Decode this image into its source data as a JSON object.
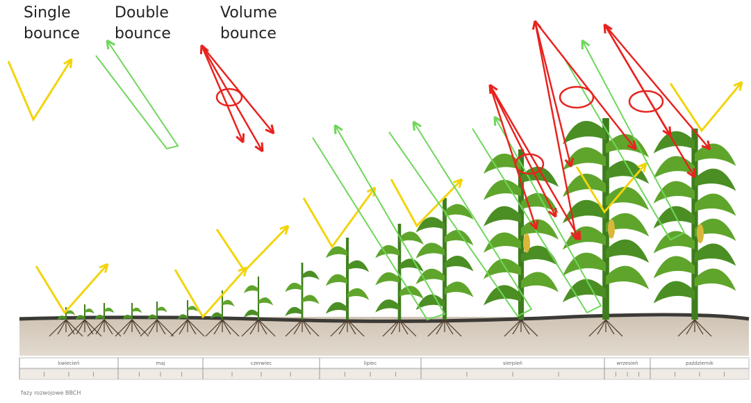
{
  "labels": [
    "Single bounce",
    "Double bounce",
    "Volume bounce"
  ],
  "timeline": {
    "months": [
      "kwiecień",
      "maj",
      "czerwiec",
      "lipiec",
      "sierpień",
      "wrzesień",
      "październik"
    ],
    "caption": "fazy rozwojowe BBCH"
  }
}
